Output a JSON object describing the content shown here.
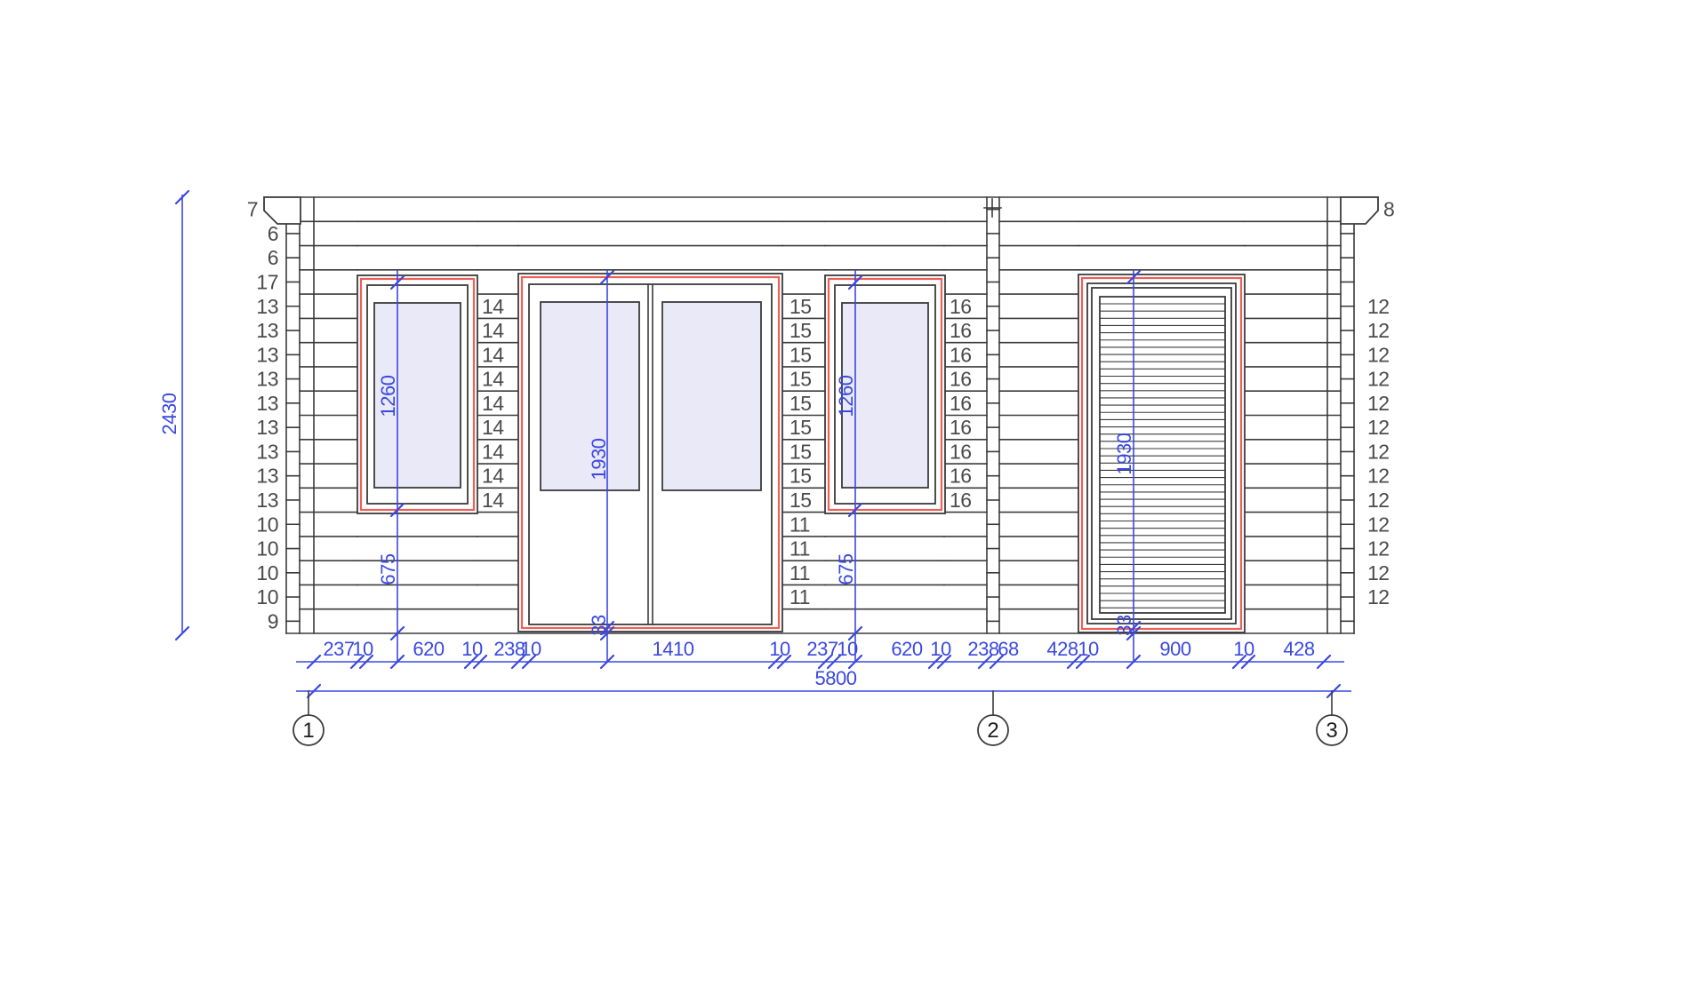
{
  "colors": {
    "line": "#3b3b3b",
    "dim": "#3a48e0",
    "casing": "#ee5f57",
    "glass": "#e9e9f8",
    "label": "#4b4b4b"
  },
  "grid_bubbles": [
    "1",
    "2",
    "3"
  ],
  "overall": {
    "height": "2430",
    "width": "5800"
  },
  "log_labels": {
    "left": [
      "7",
      "6",
      "6",
      "17",
      "13",
      "13",
      "13",
      "13",
      "13",
      "13",
      "13",
      "13",
      "13",
      "10",
      "10",
      "10",
      "10",
      "9"
    ],
    "right_top": "8",
    "right": [
      "12",
      "12",
      "12",
      "12",
      "12",
      "12",
      "12",
      "12",
      "12",
      "12",
      "12",
      "12",
      "12"
    ],
    "window1_door": [
      "14",
      "14",
      "14",
      "14",
      "14",
      "14",
      "14",
      "14",
      "14"
    ],
    "door_window2": [
      "15",
      "15",
      "15",
      "15",
      "15",
      "15",
      "15",
      "15",
      "15"
    ],
    "door_right_lower": [
      "11",
      "11",
      "11",
      "11"
    ],
    "window2_joint": [
      "16",
      "16",
      "16",
      "16",
      "16",
      "16",
      "16",
      "16",
      "16"
    ]
  },
  "bottom_dims": [
    "237",
    "10",
    "620",
    "10",
    "238",
    "10",
    "1410",
    "10",
    "237",
    "10",
    "620",
    "10",
    "238",
    "68",
    "428",
    "10",
    "900",
    "10",
    "428"
  ],
  "vertical_dims": {
    "window1": [
      "1260",
      "675"
    ],
    "door": [
      "1930",
      "33"
    ],
    "window2": [
      "1260",
      "675"
    ],
    "shed_door": [
      "1930",
      "33"
    ]
  }
}
